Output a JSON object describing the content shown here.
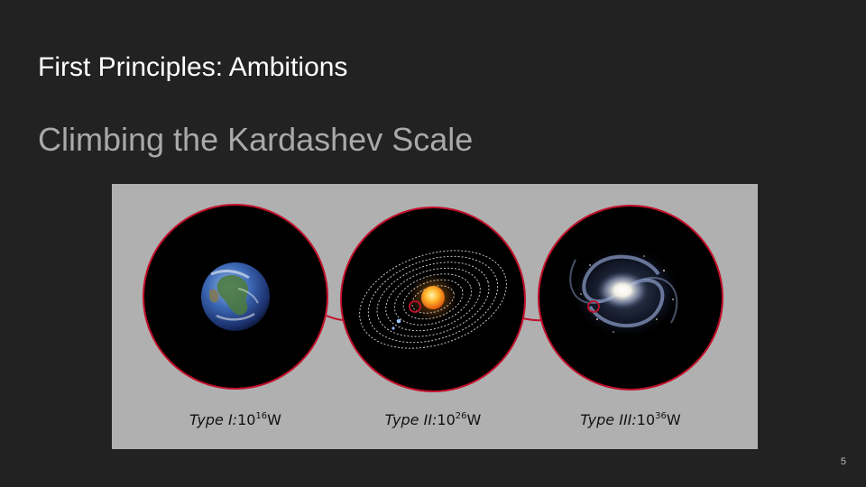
{
  "slide": {
    "title": "First Principles: Ambitions",
    "subtitle": "Climbing the Kardashev Scale",
    "page_number": "5"
  },
  "figure": {
    "ring_color": "#c0102a",
    "panel_bg": "#b0b0b0",
    "circle_fill": "#000000",
    "types": [
      {
        "name": "Type I:",
        "base": "10",
        "exponent": "16",
        "unit": "W",
        "illustration": "earth-icon"
      },
      {
        "name": "Type II:",
        "base": "10",
        "exponent": "26",
        "unit": "W",
        "illustration": "solar-system-icon"
      },
      {
        "name": "Type III:",
        "base": "10",
        "exponent": "36",
        "unit": "W",
        "illustration": "galaxy-icon"
      }
    ]
  }
}
